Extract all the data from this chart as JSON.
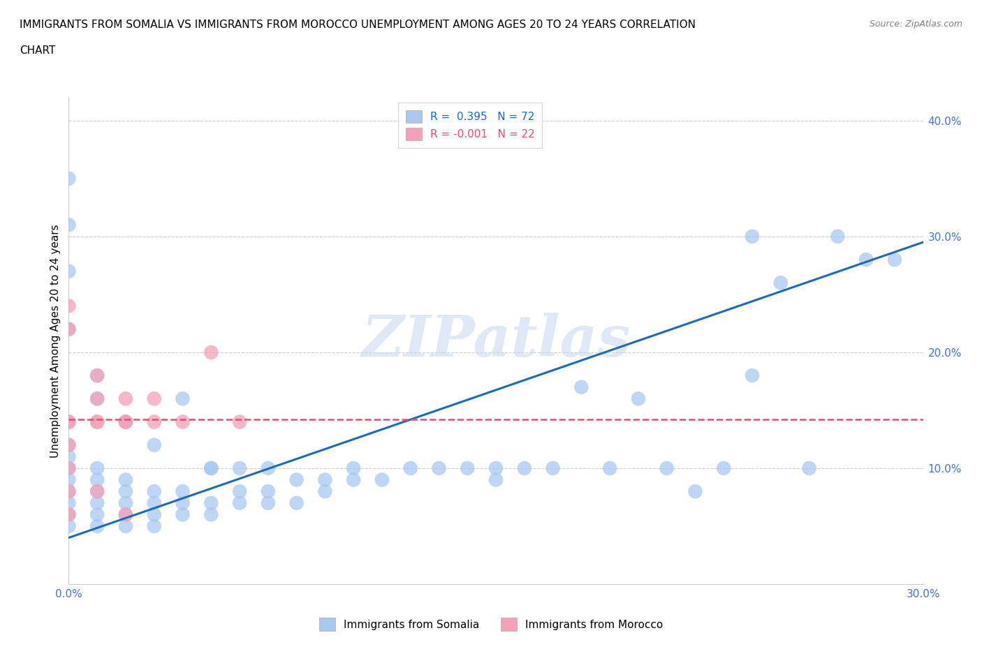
{
  "title_line1": "IMMIGRANTS FROM SOMALIA VS IMMIGRANTS FROM MOROCCO UNEMPLOYMENT AMONG AGES 20 TO 24 YEARS CORRELATION",
  "title_line2": "CHART",
  "source": "Source: ZipAtlas.com",
  "ylabel": "Unemployment Among Ages 20 to 24 years",
  "xlim": [
    0.0,
    0.3
  ],
  "ylim": [
    0.0,
    0.42
  ],
  "r_somalia": 0.395,
  "n_somalia": 72,
  "r_morocco": -0.001,
  "n_morocco": 22,
  "color_somalia": "#a8c8f0",
  "color_morocco": "#f4a0b8",
  "line_color_somalia": "#1a6abf",
  "line_color_morocco": "#e05070",
  "watermark": "ZIPatlas",
  "somalia_x": [
    0.0,
    0.0,
    0.0,
    0.0,
    0.0,
    0.0,
    0.0,
    0.0,
    0.01,
    0.01,
    0.01,
    0.01,
    0.01,
    0.01,
    0.02,
    0.02,
    0.02,
    0.02,
    0.02,
    0.03,
    0.03,
    0.03,
    0.03,
    0.04,
    0.04,
    0.04,
    0.05,
    0.05,
    0.05,
    0.06,
    0.06,
    0.07,
    0.07,
    0.08,
    0.08,
    0.09,
    0.09,
    0.1,
    0.1,
    0.11,
    0.12,
    0.13,
    0.14,
    0.15,
    0.15,
    0.16,
    0.17,
    0.18,
    0.19,
    0.2,
    0.21,
    0.22,
    0.23,
    0.24,
    0.24,
    0.25,
    0.26,
    0.27,
    0.28,
    0.29,
    0.0,
    0.0,
    0.0,
    0.0,
    0.01,
    0.01,
    0.02,
    0.03,
    0.04,
    0.05,
    0.06,
    0.07
  ],
  "somalia_y": [
    0.05,
    0.06,
    0.07,
    0.08,
    0.09,
    0.1,
    0.11,
    0.12,
    0.05,
    0.06,
    0.07,
    0.08,
    0.09,
    0.1,
    0.05,
    0.06,
    0.07,
    0.08,
    0.09,
    0.05,
    0.06,
    0.07,
    0.08,
    0.06,
    0.07,
    0.08,
    0.06,
    0.07,
    0.1,
    0.07,
    0.08,
    0.07,
    0.08,
    0.07,
    0.09,
    0.08,
    0.09,
    0.09,
    0.1,
    0.09,
    0.1,
    0.1,
    0.1,
    0.09,
    0.1,
    0.1,
    0.1,
    0.17,
    0.1,
    0.16,
    0.1,
    0.08,
    0.1,
    0.18,
    0.3,
    0.26,
    0.1,
    0.3,
    0.28,
    0.28,
    0.27,
    0.31,
    0.35,
    0.22,
    0.18,
    0.16,
    0.14,
    0.12,
    0.16,
    0.1,
    0.1,
    0.1
  ],
  "morocco_x": [
    0.0,
    0.0,
    0.0,
    0.0,
    0.0,
    0.0,
    0.01,
    0.01,
    0.01,
    0.01,
    0.02,
    0.02,
    0.02,
    0.03,
    0.03,
    0.04,
    0.05,
    0.06,
    0.0,
    0.0,
    0.01,
    0.02
  ],
  "morocco_y": [
    0.22,
    0.24,
    0.14,
    0.14,
    0.12,
    0.1,
    0.14,
    0.14,
    0.16,
    0.18,
    0.14,
    0.14,
    0.16,
    0.14,
    0.16,
    0.14,
    0.2,
    0.14,
    0.08,
    0.06,
    0.08,
    0.06
  ],
  "line_somalia_x0": 0.0,
  "line_somalia_y0": 0.04,
  "line_somalia_x1": 0.3,
  "line_somalia_y1": 0.295,
  "line_morocco_y": 0.142
}
